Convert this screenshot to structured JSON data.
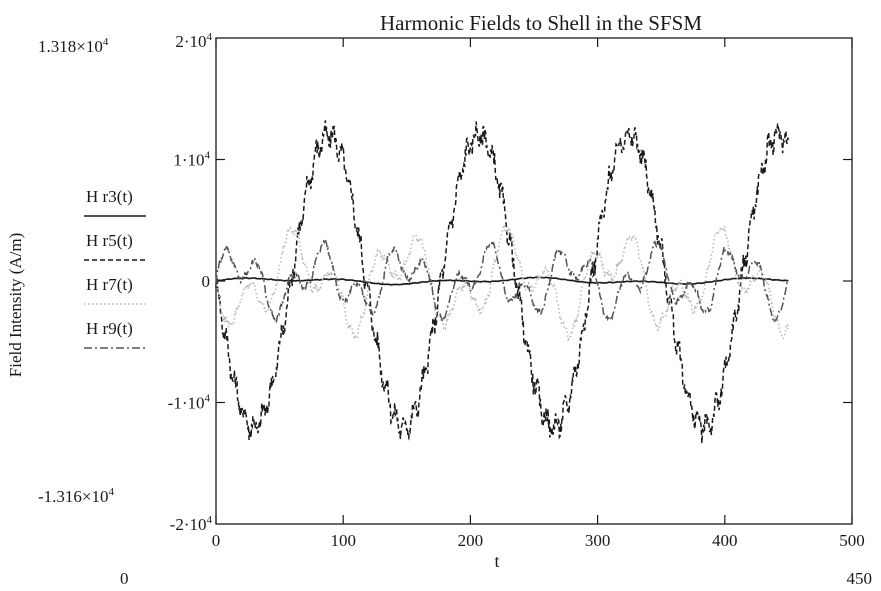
{
  "chart_data": {
    "type": "line",
    "title": "Harmonic Fields to Shell in the SFSM",
    "xlabel": "t",
    "ylabel": "Field Intensity (A/m)",
    "xlim": [
      0,
      500
    ],
    "ylim": [
      -20000,
      20000
    ],
    "x_ticks": [
      {
        "value": 0,
        "label": "0"
      },
      {
        "value": 100,
        "label": "100"
      },
      {
        "value": 200,
        "label": "200"
      },
      {
        "value": 300,
        "label": "300"
      },
      {
        "value": 400,
        "label": "400"
      },
      {
        "value": 500,
        "label": "500"
      }
    ],
    "y_ticks": [
      {
        "value": 10000,
        "label": "1·10^4"
      },
      {
        "value": 0,
        "label": "0"
      },
      {
        "value": -10000,
        "label": "-1·10^4"
      }
    ],
    "y_limit_labels": {
      "top": "2·10^4",
      "bottom": "-2·10^4"
    },
    "corner_labels": {
      "y_max": "1.318×10^4",
      "y_min": "-1.316×10^4",
      "x_min": "0",
      "x_max": "450"
    },
    "grid": false,
    "legend_position": "left",
    "series": [
      {
        "name": "H r3(t)",
        "style": "solid",
        "color": "#1a1a1a",
        "amplitude": 300,
        "harmonic": 3,
        "phase": 0
      },
      {
        "name": "H r5(t)",
        "style": "dashed",
        "color": "#1a1a1a",
        "amplitude": 12000,
        "harmonic": 5,
        "phase": 3.14159
      },
      {
        "name": "H r7(t)",
        "style": "dotted",
        "color": "#b8b8b8",
        "amplitude": 4500,
        "harmonic": 7,
        "phase": 3.14159
      },
      {
        "name": "H r9(t)",
        "style": "dashdot",
        "color": "#555555",
        "amplitude": 3200,
        "harmonic": 9,
        "phase": 0
      }
    ],
    "t_range": [
      0,
      450
    ]
  }
}
